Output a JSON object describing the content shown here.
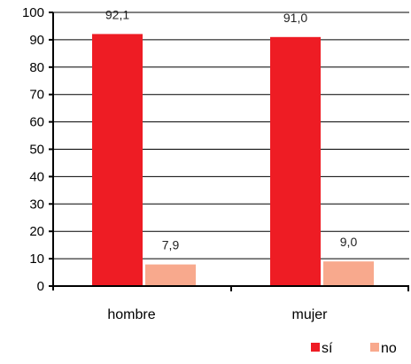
{
  "chart_data": {
    "type": "bar",
    "title": "",
    "xlabel": "",
    "ylabel": "",
    "categories": [
      "hombre",
      "mujer"
    ],
    "series": [
      {
        "name": "sí",
        "values": [
          92.1,
          91.0
        ],
        "labels": [
          "92,1",
          "91,0"
        ],
        "color": "#ee1c24"
      },
      {
        "name": "no",
        "values": [
          7.9,
          9.0
        ],
        "labels": [
          "7,9",
          "9,0"
        ],
        "color": "#f8a98d"
      }
    ],
    "ylim": [
      0,
      100
    ],
    "yticks": [
      0,
      10,
      20,
      30,
      40,
      50,
      60,
      70,
      80,
      90,
      100
    ],
    "grid": true,
    "legend": "bottom-right"
  }
}
